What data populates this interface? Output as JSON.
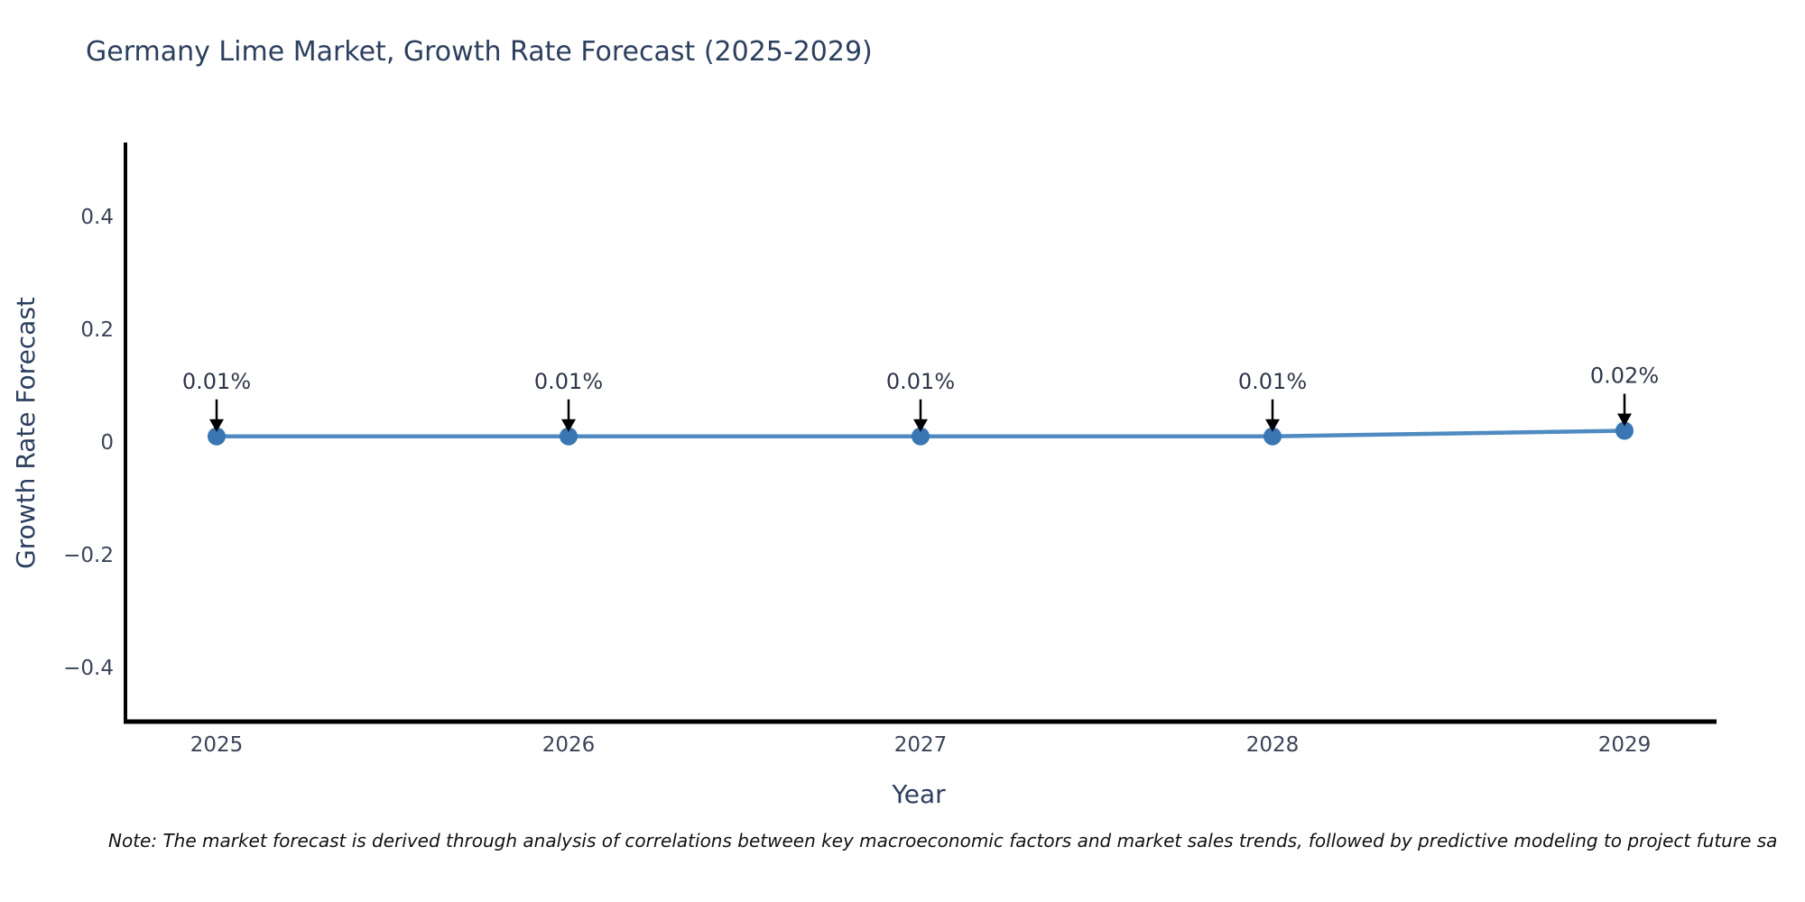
{
  "chart_data": {
    "type": "line",
    "title": "Germany Lime Market, Growth Rate Forecast (2025-2029)",
    "xlabel": "Year",
    "ylabel": "Growth Rate Forecast",
    "x": [
      2025,
      2026,
      2027,
      2028,
      2029
    ],
    "x_tick_labels": [
      "2025",
      "2026",
      "2027",
      "2028",
      "2029"
    ],
    "series": [
      {
        "name": "Growth Rate Forecast",
        "values": [
          0.01,
          0.01,
          0.01,
          0.01,
          0.02
        ]
      }
    ],
    "point_labels": [
      "0.01%",
      "0.01%",
      "0.01%",
      "0.01%",
      "0.02%"
    ],
    "yticks": [
      0.4,
      0.2,
      0,
      -0.2,
      -0.4
    ],
    "y_tick_labels": [
      "0.4",
      "0.2",
      "0",
      "−0.2",
      "−0.4"
    ],
    "ylim": [
      -0.5,
      0.53
    ],
    "grid": false,
    "legend_position": "none",
    "annotations_have_arrows": true,
    "colors": {
      "line": "#4f8ac0",
      "marker": "#3b76b4",
      "axis": "#000000",
      "arrow": "#000000",
      "title_text": "#2c3f5e",
      "tick_text": "#3b4458",
      "annotation_text": "#2f3749",
      "note_text": "#111111"
    }
  },
  "note": "Note: The market forecast is derived through analysis of correlations between key macroeconomic factors and market sales trends, followed by predictive modeling to project future sa"
}
